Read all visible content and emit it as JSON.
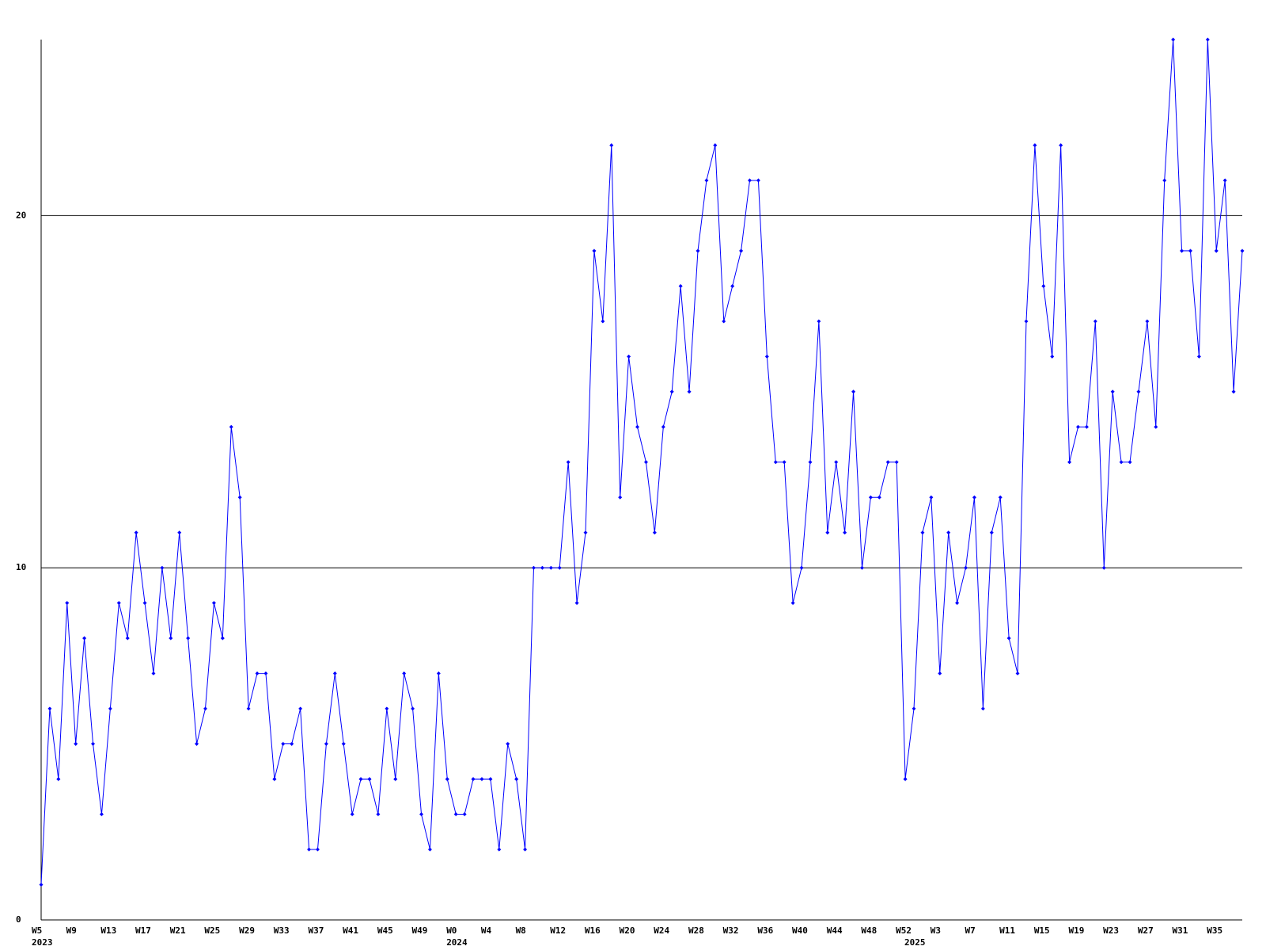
{
  "chart_data": {
    "type": "line",
    "categories": [
      "W5",
      null,
      null,
      null,
      "W9",
      null,
      null,
      null,
      "W13",
      null,
      null,
      null,
      "W17",
      null,
      null,
      null,
      "W21",
      null,
      null,
      null,
      "W25",
      null,
      null,
      null,
      "W29",
      null,
      null,
      null,
      "W33",
      null,
      null,
      null,
      "W37",
      null,
      null,
      null,
      "W41",
      null,
      null,
      null,
      "W45",
      null,
      null,
      null,
      "W49",
      null,
      null,
      null,
      "W0",
      null,
      null,
      null,
      "W4",
      null,
      null,
      null,
      "W8",
      null,
      null,
      null,
      "W12",
      null,
      null,
      null,
      "W16",
      null,
      null,
      null,
      "W20",
      null,
      null,
      null,
      "W24",
      null,
      null,
      null,
      "W28",
      null,
      null,
      null,
      "W32",
      null,
      null,
      null,
      "W36",
      null,
      null,
      null,
      "W40",
      null,
      null,
      null,
      "W44",
      null,
      null,
      null,
      "W48",
      null,
      null,
      null,
      "W52",
      null,
      null,
      null,
      "W3",
      null,
      null,
      null,
      "W7",
      null,
      null,
      null,
      "W11",
      null,
      null,
      null,
      "W15",
      null,
      null,
      null,
      "W19",
      null,
      null,
      null,
      "W23",
      null,
      null,
      null,
      "W27",
      null,
      null,
      null,
      "W31",
      null,
      null,
      null,
      "W35",
      null,
      null,
      null
    ],
    "category_years": [
      "2023",
      null,
      null,
      null,
      null,
      null,
      null,
      null,
      null,
      null,
      null,
      null,
      null,
      null,
      null,
      null,
      null,
      null,
      null,
      null,
      null,
      null,
      null,
      null,
      null,
      null,
      null,
      null,
      null,
      null,
      null,
      null,
      null,
      null,
      null,
      null,
      null,
      null,
      null,
      null,
      null,
      null,
      null,
      null,
      null,
      null,
      null,
      null,
      "2024",
      null,
      null,
      null,
      null,
      null,
      null,
      null,
      null,
      null,
      null,
      null,
      null,
      null,
      null,
      null,
      null,
      null,
      null,
      null,
      null,
      null,
      null,
      null,
      null,
      null,
      null,
      null,
      null,
      null,
      null,
      null,
      null,
      null,
      null,
      null,
      null,
      null,
      null,
      null,
      null,
      null,
      null,
      null,
      null,
      null,
      null,
      null,
      null,
      null,
      null,
      null,
      null,
      "2025",
      null,
      null,
      null,
      null,
      null,
      null,
      null,
      null,
      null,
      null,
      null,
      null,
      null,
      null,
      null,
      null,
      null,
      null,
      null,
      null,
      null,
      null,
      null,
      null,
      null,
      null,
      null,
      null,
      null,
      null,
      null,
      null,
      null,
      null,
      null,
      null,
      null,
      null
    ],
    "values": [
      1,
      6,
      4,
      9,
      5,
      8,
      5,
      3,
      6,
      9,
      8,
      11,
      9,
      7,
      10,
      8,
      11,
      8,
      5,
      6,
      9,
      8,
      14,
      12,
      6,
      7,
      7,
      4,
      5,
      5,
      6,
      2,
      2,
      5,
      7,
      5,
      3,
      4,
      4,
      3,
      6,
      4,
      7,
      6,
      3,
      2,
      7,
      4,
      3,
      3,
      4,
      4,
      4,
      2,
      5,
      4,
      2,
      10,
      10,
      10,
      10,
      13,
      9,
      11,
      19,
      17,
      22,
      12,
      16,
      14,
      13,
      11,
      14,
      15,
      18,
      15,
      19,
      21,
      22,
      17,
      18,
      19,
      21,
      21,
      16,
      13,
      13,
      9,
      10,
      13,
      17,
      11,
      13,
      11,
      15,
      10,
      12,
      12,
      13,
      13,
      4,
      6,
      11,
      12,
      7,
      11,
      9,
      10,
      12,
      6,
      11,
      12,
      8,
      7,
      17,
      22,
      18,
      16,
      22,
      13,
      14,
      14,
      17,
      10,
      15,
      13,
      13,
      15,
      17,
      14,
      21,
      25,
      19,
      19,
      16,
      25,
      19,
      21,
      15,
      19
    ],
    "color": "#0000ff",
    "ylim": [
      0,
      25
    ],
    "yticks": [
      0,
      10,
      20
    ],
    "grid": true,
    "grid_color": "#000000"
  }
}
